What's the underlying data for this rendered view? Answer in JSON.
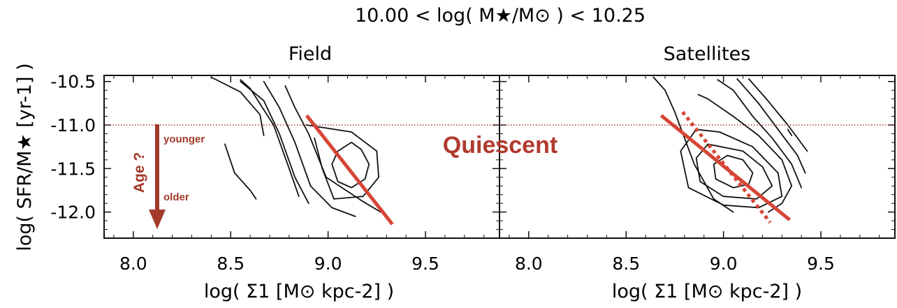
{
  "chart_data": [
    {
      "type": "line",
      "panel_title": "Field",
      "xlim": [
        7.85,
        9.88
      ],
      "ylim": [
        -12.3,
        -10.43
      ],
      "xticks": [
        "8.0",
        "8.5",
        "9.0",
        "9.5"
      ],
      "yticks": [
        "-10.5",
        "-11.0",
        "-11.5",
        "-12.0"
      ],
      "xlabel": "log( Σ1 [M⊙ kpc-2] )",
      "ylabel": "log( SFR/M★ [yr-1] )",
      "threshold_y": -11.0,
      "series": [
        {
          "style": "fit-solid",
          "x": [
            8.89,
            9.33
          ],
          "y": [
            -10.89,
            -12.14
          ]
        }
      ],
      "contours": [
        {
          "x": [
            9.12,
            9.05,
            9.02,
            9.05,
            9.12,
            9.19,
            9.21,
            9.17,
            9.12
          ],
          "y": [
            -11.2,
            -11.3,
            -11.45,
            -11.65,
            -11.72,
            -11.62,
            -11.45,
            -11.28,
            -11.2
          ]
        },
        {
          "x": [
            8.89,
            9.12,
            9.25,
            9.26,
            9.18,
            9.03,
            8.97,
            8.93
          ],
          "y": [
            -11.0,
            -11.08,
            -11.3,
            -11.6,
            -11.82,
            -11.85,
            -11.5,
            -11.15
          ]
        },
        {
          "x": [
            8.78,
            8.83,
            8.9,
            8.99,
            9.18,
            9.27
          ],
          "y": [
            -10.55,
            -10.8,
            -11.1,
            -11.6,
            -11.88,
            -12.0
          ]
        },
        {
          "x": [
            8.67,
            8.75,
            8.83,
            8.91,
            9.02,
            9.14
          ],
          "y": [
            -10.5,
            -10.8,
            -11.2,
            -11.7,
            -11.95,
            -12.05
          ]
        },
        {
          "x": [
            8.55,
            8.67,
            8.75,
            8.83,
            8.9
          ],
          "y": [
            -10.5,
            -10.72,
            -11.1,
            -11.6,
            -11.9
          ]
        },
        {
          "x": [
            8.55,
            8.6,
            8.72,
            8.8,
            8.85
          ],
          "y": [
            -10.48,
            -10.58,
            -11.0,
            -11.5,
            -11.82
          ]
        },
        {
          "x": [
            8.4,
            8.55,
            8.65,
            8.67
          ],
          "y": [
            -10.45,
            -10.62,
            -10.88,
            -11.12
          ]
        },
        {
          "x": [
            8.47,
            8.52,
            8.6,
            8.63
          ],
          "y": [
            -11.22,
            -11.55,
            -11.75,
            -11.85
          ]
        }
      ]
    },
    {
      "type": "line",
      "panel_title": "Satellites",
      "xlim": [
        7.85,
        9.88
      ],
      "ylim": [
        -12.3,
        -10.43
      ],
      "xticks": [
        "8.0",
        "8.5",
        "9.0",
        "9.5"
      ],
      "yticks": [],
      "xlabel": "log( Σ1 [M⊙ kpc-2] )",
      "ylabel": "",
      "threshold_y": -11.0,
      "series": [
        {
          "style": "fit-solid",
          "x": [
            8.68,
            9.34
          ],
          "y": [
            -10.89,
            -12.09
          ]
        },
        {
          "style": "fit-dotted",
          "x": [
            8.79,
            9.24
          ],
          "y": [
            -10.85,
            -12.12
          ]
        }
      ],
      "contours": [
        {
          "x": [
            9.02,
            8.95,
            8.96,
            9.05,
            9.13,
            9.15,
            9.1,
            9.02
          ],
          "y": [
            -11.35,
            -11.45,
            -11.62,
            -11.72,
            -11.68,
            -11.55,
            -11.4,
            -11.35
          ]
        },
        {
          "x": [
            8.92,
            8.86,
            8.88,
            9.0,
            9.17,
            9.25,
            9.2,
            9.1,
            8.92
          ],
          "y": [
            -11.22,
            -11.38,
            -11.65,
            -11.82,
            -11.85,
            -11.7,
            -11.48,
            -11.3,
            -11.22
          ]
        },
        {
          "x": [
            8.86,
            8.78,
            8.82,
            9.0,
            9.18,
            9.3,
            9.28,
            9.15,
            8.98,
            8.86
          ],
          "y": [
            -11.05,
            -11.3,
            -11.72,
            -11.92,
            -11.95,
            -11.82,
            -11.55,
            -11.25,
            -11.08,
            -11.05
          ]
        },
        {
          "x": [
            8.87,
            8.92,
            9.05,
            9.18,
            9.3,
            9.35,
            9.3,
            9.23
          ],
          "y": [
            -10.65,
            -10.7,
            -10.9,
            -11.12,
            -11.4,
            -11.7,
            -11.9,
            -12.0
          ]
        },
        {
          "x": [
            8.97,
            9.05,
            9.15,
            9.25,
            9.35,
            9.4
          ],
          "y": [
            -10.48,
            -10.6,
            -10.9,
            -11.15,
            -11.45,
            -11.72
          ]
        },
        {
          "x": [
            9.07,
            9.18,
            9.28,
            9.38,
            9.42
          ],
          "y": [
            -10.47,
            -10.75,
            -11.05,
            -11.35,
            -11.55
          ]
        },
        {
          "x": [
            9.13,
            9.22,
            9.33,
            9.43
          ],
          "y": [
            -10.47,
            -10.7,
            -11.0,
            -11.3
          ]
        },
        {
          "x": [
            8.64,
            8.7,
            8.75,
            8.85,
            8.95,
            9.05
          ],
          "y": [
            -10.45,
            -10.6,
            -10.85,
            -11.45,
            -11.85,
            -12.0
          ]
        },
        {
          "x": [
            9.33,
            9.35
          ],
          "y": [
            -11.05,
            -11.12
          ]
        }
      ]
    }
  ],
  "figure": {
    "title": "10.00 < log( M★/M⊙ ) < 10.25",
    "quiescent_label": "Quiescent",
    "age_label": "Age ?",
    "younger_label": "younger",
    "older_label": "older",
    "colors": {
      "fit": "#d64535",
      "threshold": "#a33a2a",
      "annotation": "#a33a2a",
      "quiescent": "#b03a2e",
      "contour": "#111111"
    }
  }
}
